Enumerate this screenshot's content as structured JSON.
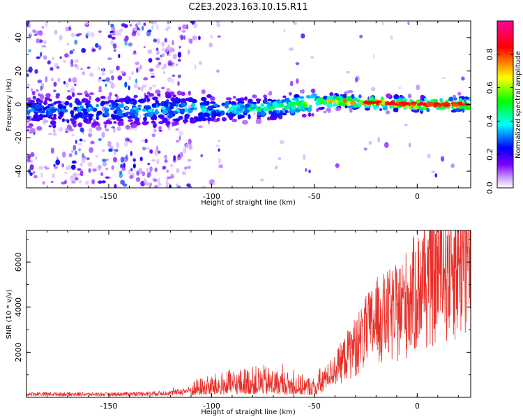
{
  "title": "C2E3.2023.163.10.15.R11",
  "chart_data": [
    {
      "type": "heatmap",
      "xlabel": "Height of straight line (km)",
      "ylabel": "Frequency (Hz)",
      "xlim": [
        -190,
        26
      ],
      "ylim": [
        -50,
        50
      ],
      "x_ticks": [
        -150,
        -100,
        -50,
        0
      ],
      "x_tick_labels": [
        "-150",
        "-100",
        "-50",
        "0"
      ],
      "y_ticks": [
        -40,
        -20,
        0,
        20,
        40
      ],
      "y_tick_labels": [
        "-40",
        "-20",
        "0",
        "20",
        "40"
      ],
      "colorbar": {
        "label": "Normalized spectral amplitude",
        "range": [
          0,
          1
        ],
        "ticks": [
          0.0,
          0.2,
          0.4,
          0.6,
          0.8
        ],
        "tick_labels": [
          "0.0",
          "0.2",
          "0.4",
          "0.6",
          "0.8"
        ],
        "colormap": [
          "#ffffff",
          "#7b00ff",
          "#0000ff",
          "#00ffff",
          "#00ff00",
          "#ffff00",
          "#ff0000",
          "#ff00a0"
        ]
      },
      "ridge": {
        "description_points_x": [
          -190,
          -150,
          -100,
          -70,
          -50,
          -40,
          -20,
          0,
          26
        ],
        "frequency_y": [
          -4,
          -3,
          -3,
          -2,
          1,
          2,
          1,
          0,
          0
        ],
        "amplitude": [
          0.25,
          0.3,
          0.35,
          0.45,
          0.6,
          0.7,
          0.85,
          0.9,
          0.8
        ]
      }
    },
    {
      "type": "line",
      "xlabel": "Height of straight line (km)",
      "ylabel": "SNR (10 * v/v)",
      "xlim": [
        -190,
        26
      ],
      "ylim": [
        0,
        7400
      ],
      "x_ticks": [
        -150,
        -100,
        -50,
        0
      ],
      "x_tick_labels": [
        "-150",
        "-100",
        "-50",
        "0"
      ],
      "y_ticks": [
        2000,
        4000,
        6000
      ],
      "y_tick_labels": [
        "2000",
        "4000",
        "6000"
      ],
      "color": "#e8302a",
      "envelope_x": [
        -190,
        -150,
        -120,
        -105,
        -90,
        -75,
        -60,
        -50,
        -40,
        -30,
        -20,
        -10,
        0,
        10,
        20,
        26
      ],
      "envelope_y": [
        200,
        180,
        250,
        500,
        700,
        800,
        600,
        500,
        1400,
        2600,
        3800,
        4200,
        5300,
        6300,
        6700,
        7000
      ]
    }
  ]
}
